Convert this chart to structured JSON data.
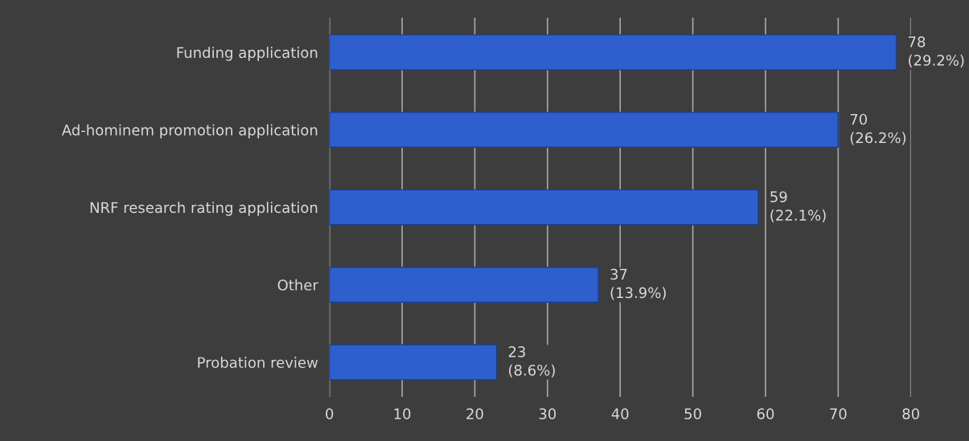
{
  "chart_data": {
    "type": "bar",
    "orientation": "horizontal",
    "categories": [
      "Funding application",
      "Ad-hominem promotion application",
      "NRF research rating application",
      "Other",
      "Probation review"
    ],
    "values": [
      78,
      70,
      59,
      37,
      23
    ],
    "value_labels": [
      "78\n(29.2%)",
      "70\n(26.2%)",
      "59\n(22.1%)",
      "37\n(13.9%)",
      "23\n(8.6%)"
    ],
    "color": "#2e5fcc",
    "xlim": [
      0,
      80
    ],
    "xticks": [
      0,
      10,
      20,
      30,
      40,
      50,
      60,
      70,
      80
    ],
    "grid": "x"
  }
}
